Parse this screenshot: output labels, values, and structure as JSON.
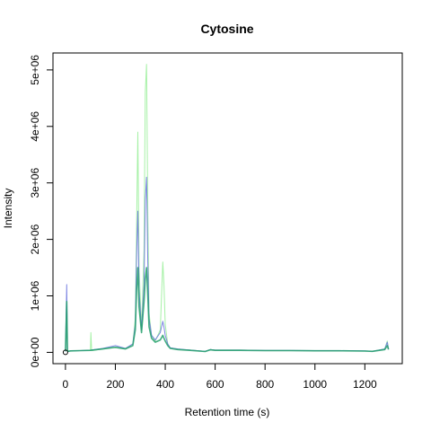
{
  "chart_data": {
    "type": "line",
    "title": "Cytosine",
    "xlabel": "Retention time (s)",
    "ylabel": "Intensity",
    "xlim": [
      -50,
      1350
    ],
    "ylim": [
      -200000,
      5300000
    ],
    "x_ticks": [
      {
        "value": 0,
        "label": "0"
      },
      {
        "value": 200,
        "label": "200"
      },
      {
        "value": 400,
        "label": "400"
      },
      {
        "value": 600,
        "label": "600"
      },
      {
        "value": 800,
        "label": "800"
      },
      {
        "value": 1000,
        "label": "1000"
      },
      {
        "value": 1200,
        "label": "1200"
      }
    ],
    "y_ticks": [
      {
        "value": 0,
        "label": "0e+00"
      },
      {
        "value": 1000000,
        "label": "1e+06"
      },
      {
        "value": 2000000,
        "label": "2e+06"
      },
      {
        "value": 3000000,
        "label": "3e+06"
      },
      {
        "value": 4000000,
        "label": "4e+06"
      },
      {
        "value": 5000000,
        "label": "5e+06"
      }
    ],
    "grid": false,
    "legend": "none",
    "series": [
      {
        "color": "#90ee90",
        "x": [
          0,
          5,
          8,
          12,
          20,
          60,
          100,
          102,
          105,
          150,
          200,
          240,
          270,
          280,
          285,
          290,
          295,
          305,
          315,
          320,
          325,
          330,
          335,
          345,
          360,
          380,
          390,
          395,
          400,
          410,
          420,
          450,
          500,
          560,
          580,
          600,
          700,
          800,
          900,
          1000,
          1100,
          1200,
          1230,
          1280,
          1290,
          1295
        ],
        "y": [
          20000,
          800000,
          30000,
          20000,
          25000,
          30000,
          30000,
          350000,
          30000,
          60000,
          90000,
          60000,
          150000,
          600000,
          2200000,
          3900000,
          1500000,
          400000,
          1800000,
          4600000,
          5100000,
          2500000,
          700000,
          300000,
          200000,
          400000,
          1600000,
          1200000,
          500000,
          150000,
          80000,
          60000,
          40000,
          20000,
          50000,
          40000,
          40000,
          35000,
          35000,
          30000,
          30000,
          25000,
          20000,
          60000,
          200000,
          60000
        ]
      },
      {
        "color": "#6670dd",
        "x": [
          0,
          5,
          8,
          12,
          20,
          60,
          100,
          150,
          200,
          240,
          270,
          280,
          285,
          290,
          295,
          305,
          315,
          320,
          325,
          330,
          335,
          345,
          360,
          380,
          390,
          395,
          400,
          410,
          420,
          450,
          500,
          560,
          580,
          600,
          700,
          800,
          900,
          1000,
          1100,
          1200,
          1230,
          1280,
          1290,
          1295
        ],
        "y": [
          20000,
          1200000,
          30000,
          20000,
          25000,
          30000,
          40000,
          70000,
          120000,
          70000,
          150000,
          500000,
          1700000,
          2500000,
          1100000,
          400000,
          1200000,
          2700000,
          3100000,
          1600000,
          600000,
          300000,
          220000,
          350000,
          550000,
          450000,
          300000,
          150000,
          80000,
          60000,
          40000,
          20000,
          50000,
          40000,
          40000,
          35000,
          35000,
          30000,
          30000,
          25000,
          20000,
          60000,
          180000,
          60000
        ]
      },
      {
        "color": "#22a06b",
        "x": [
          0,
          5,
          8,
          12,
          20,
          60,
          100,
          150,
          200,
          240,
          270,
          280,
          285,
          290,
          295,
          305,
          315,
          320,
          325,
          330,
          335,
          345,
          360,
          380,
          390,
          395,
          400,
          410,
          420,
          450,
          500,
          560,
          580,
          600,
          700,
          800,
          900,
          1000,
          1100,
          1200,
          1230,
          1280,
          1290,
          1295
        ],
        "y": [
          20000,
          900000,
          30000,
          20000,
          25000,
          30000,
          35000,
          60000,
          90000,
          60000,
          120000,
          400000,
          1100000,
          1500000,
          800000,
          350000,
          900000,
          1300000,
          1500000,
          1000000,
          450000,
          250000,
          180000,
          220000,
          300000,
          250000,
          200000,
          120000,
          70000,
          50000,
          35000,
          15000,
          45000,
          35000,
          35000,
          30000,
          30000,
          28000,
          28000,
          22000,
          18000,
          50000,
          120000,
          50000
        ]
      }
    ],
    "annotations": [
      {
        "type": "open-circle-marker",
        "x": 0,
        "y": 0
      }
    ]
  }
}
